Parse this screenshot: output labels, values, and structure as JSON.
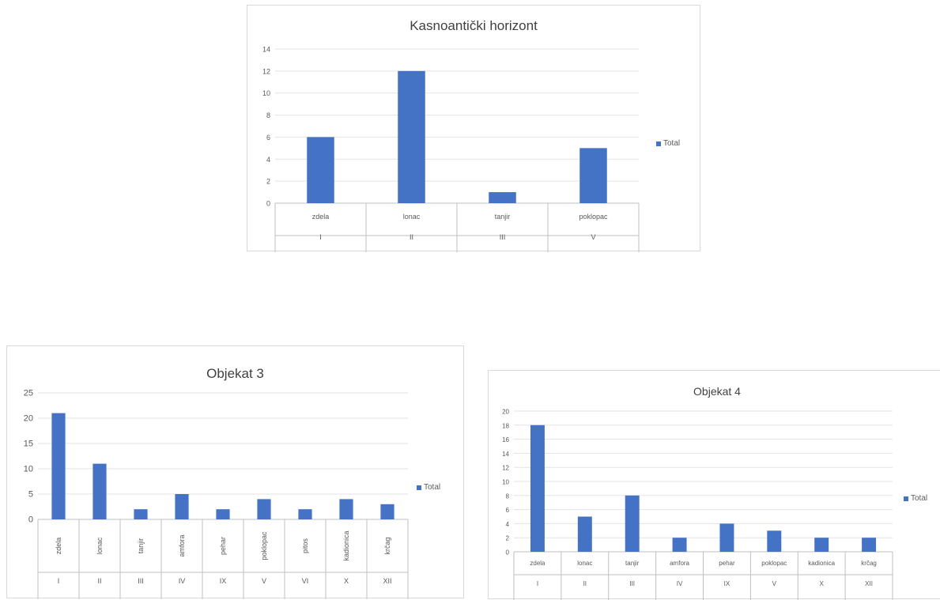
{
  "chart_data": [
    {
      "type": "bar",
      "title": "Kasnoantički horizont",
      "categories": [
        "zdela",
        "lonac",
        "tanjir",
        "poklopac"
      ],
      "groups": [
        "I",
        "II",
        "III",
        "V"
      ],
      "series": [
        {
          "name": "Total",
          "values": [
            6,
            12,
            1,
            5
          ]
        }
      ],
      "ylim": [
        0,
        14
      ],
      "yticks": [
        0,
        2,
        4,
        6,
        8,
        10,
        12,
        14
      ],
      "grid": true,
      "legend": "right",
      "color": "#4472c4"
    },
    {
      "type": "bar",
      "title": "Objekat 3",
      "categories": [
        "zdela",
        "lonac",
        "tanjir",
        "amfora",
        "pehar",
        "poklopac",
        "pitos",
        "kadionica",
        "krčag"
      ],
      "groups": [
        "I",
        "II",
        "III",
        "IV",
        "IX",
        "V",
        "VI",
        "X",
        "XII"
      ],
      "series": [
        {
          "name": "Total",
          "values": [
            21,
            11,
            2,
            5,
            2,
            4,
            2,
            4,
            3
          ]
        }
      ],
      "ylim": [
        0,
        25
      ],
      "yticks": [
        0,
        5,
        10,
        15,
        20,
        25
      ],
      "grid": true,
      "legend": "right",
      "color": "#4472c4"
    },
    {
      "type": "bar",
      "title": "Objekat 4",
      "categories": [
        "zdela",
        "lonac",
        "tanjir",
        "amfora",
        "pehar",
        "poklopac",
        "kadionica",
        "krčag"
      ],
      "groups": [
        "I",
        "II",
        "III",
        "IV",
        "IX",
        "V",
        "X",
        "XII"
      ],
      "series": [
        {
          "name": "Total",
          "values": [
            18,
            5,
            8,
            2,
            4,
            3,
            2,
            2
          ]
        }
      ],
      "ylim": [
        0,
        20
      ],
      "yticks": [
        0,
        2,
        4,
        6,
        8,
        10,
        12,
        14,
        16,
        18,
        20
      ],
      "grid": true,
      "legend": "right",
      "color": "#4472c4"
    }
  ]
}
